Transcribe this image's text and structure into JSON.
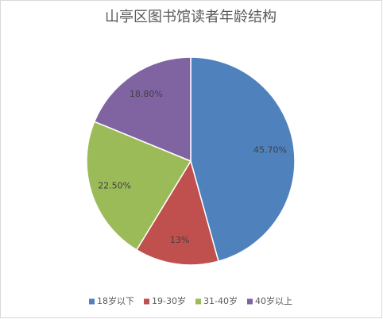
{
  "chart_data": {
    "type": "pie",
    "title": "山亭区图书馆读者年龄结构",
    "categories": [
      "18岁以下",
      "19-30岁",
      "31-40岁",
      "40岁以上"
    ],
    "values": [
      45.7,
      13,
      22.5,
      18.8
    ],
    "value_labels": [
      "45.70%",
      "13%",
      "22.50%",
      "18.80%"
    ],
    "colors": [
      "#4f81bd",
      "#c0504d",
      "#9bbb59",
      "#8064a2"
    ],
    "legend": "bottom"
  }
}
